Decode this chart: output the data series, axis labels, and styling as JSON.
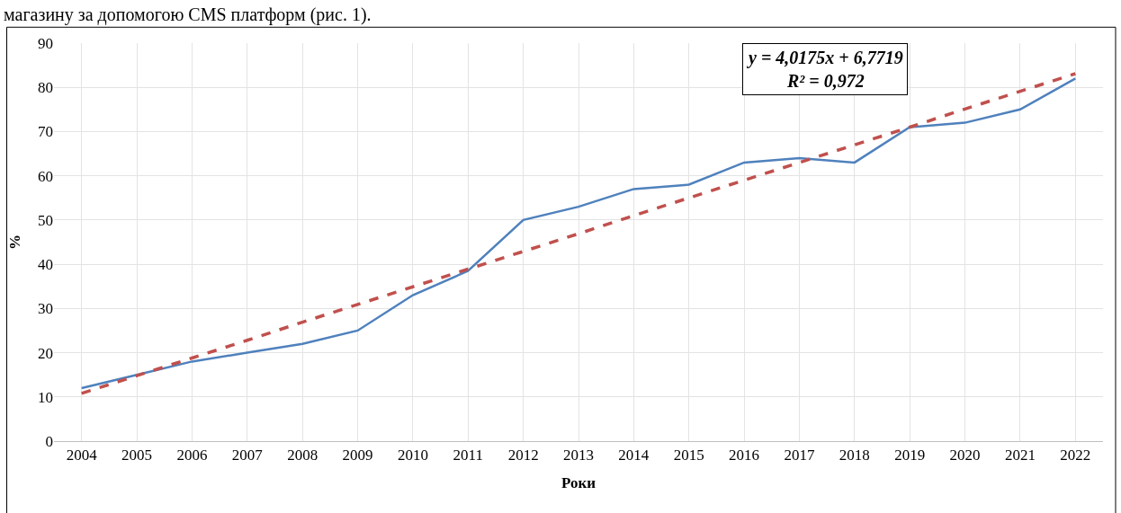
{
  "chart_data": {
    "type": "line",
    "xlabel": "Роки",
    "ylabel": "%",
    "categories": [
      "2004",
      "2005",
      "2006",
      "2007",
      "2008",
      "2009",
      "2010",
      "2011",
      "2012",
      "2013",
      "2014",
      "2015",
      "2016",
      "2017",
      "2018",
      "2019",
      "2020",
      "2021",
      "2022"
    ],
    "series": [
      {
        "color": "#4f81bd",
        "values": [
          12,
          15,
          18,
          20,
          22,
          25,
          33,
          38.5,
          50,
          53,
          57,
          58,
          63,
          64,
          63,
          71,
          72,
          75,
          82
        ],
        "line_style": "solid"
      },
      {
        "type": "line",
        "color": "#c0504d",
        "values": [
          10.8,
          14.8,
          18.8,
          22.8,
          26.9,
          30.9,
          34.9,
          38.9,
          42.9,
          46.9,
          51,
          55,
          59,
          63,
          67,
          71,
          75.1,
          79.1,
          83.1
        ],
        "line_style": "dashed"
      }
    ],
    "ylim": [
      0,
      90
    ],
    "yticks": [
      0,
      10,
      20,
      30,
      40,
      50,
      60,
      70,
      80,
      90
    ],
    "grid": true,
    "legend": false,
    "marker": "none",
    "annotations": [
      "магазину за допомогою CMS платформ (рис. 1).",
      "y = 4,0175x + 6,7719\nR² = 0,972"
    ]
  }
}
